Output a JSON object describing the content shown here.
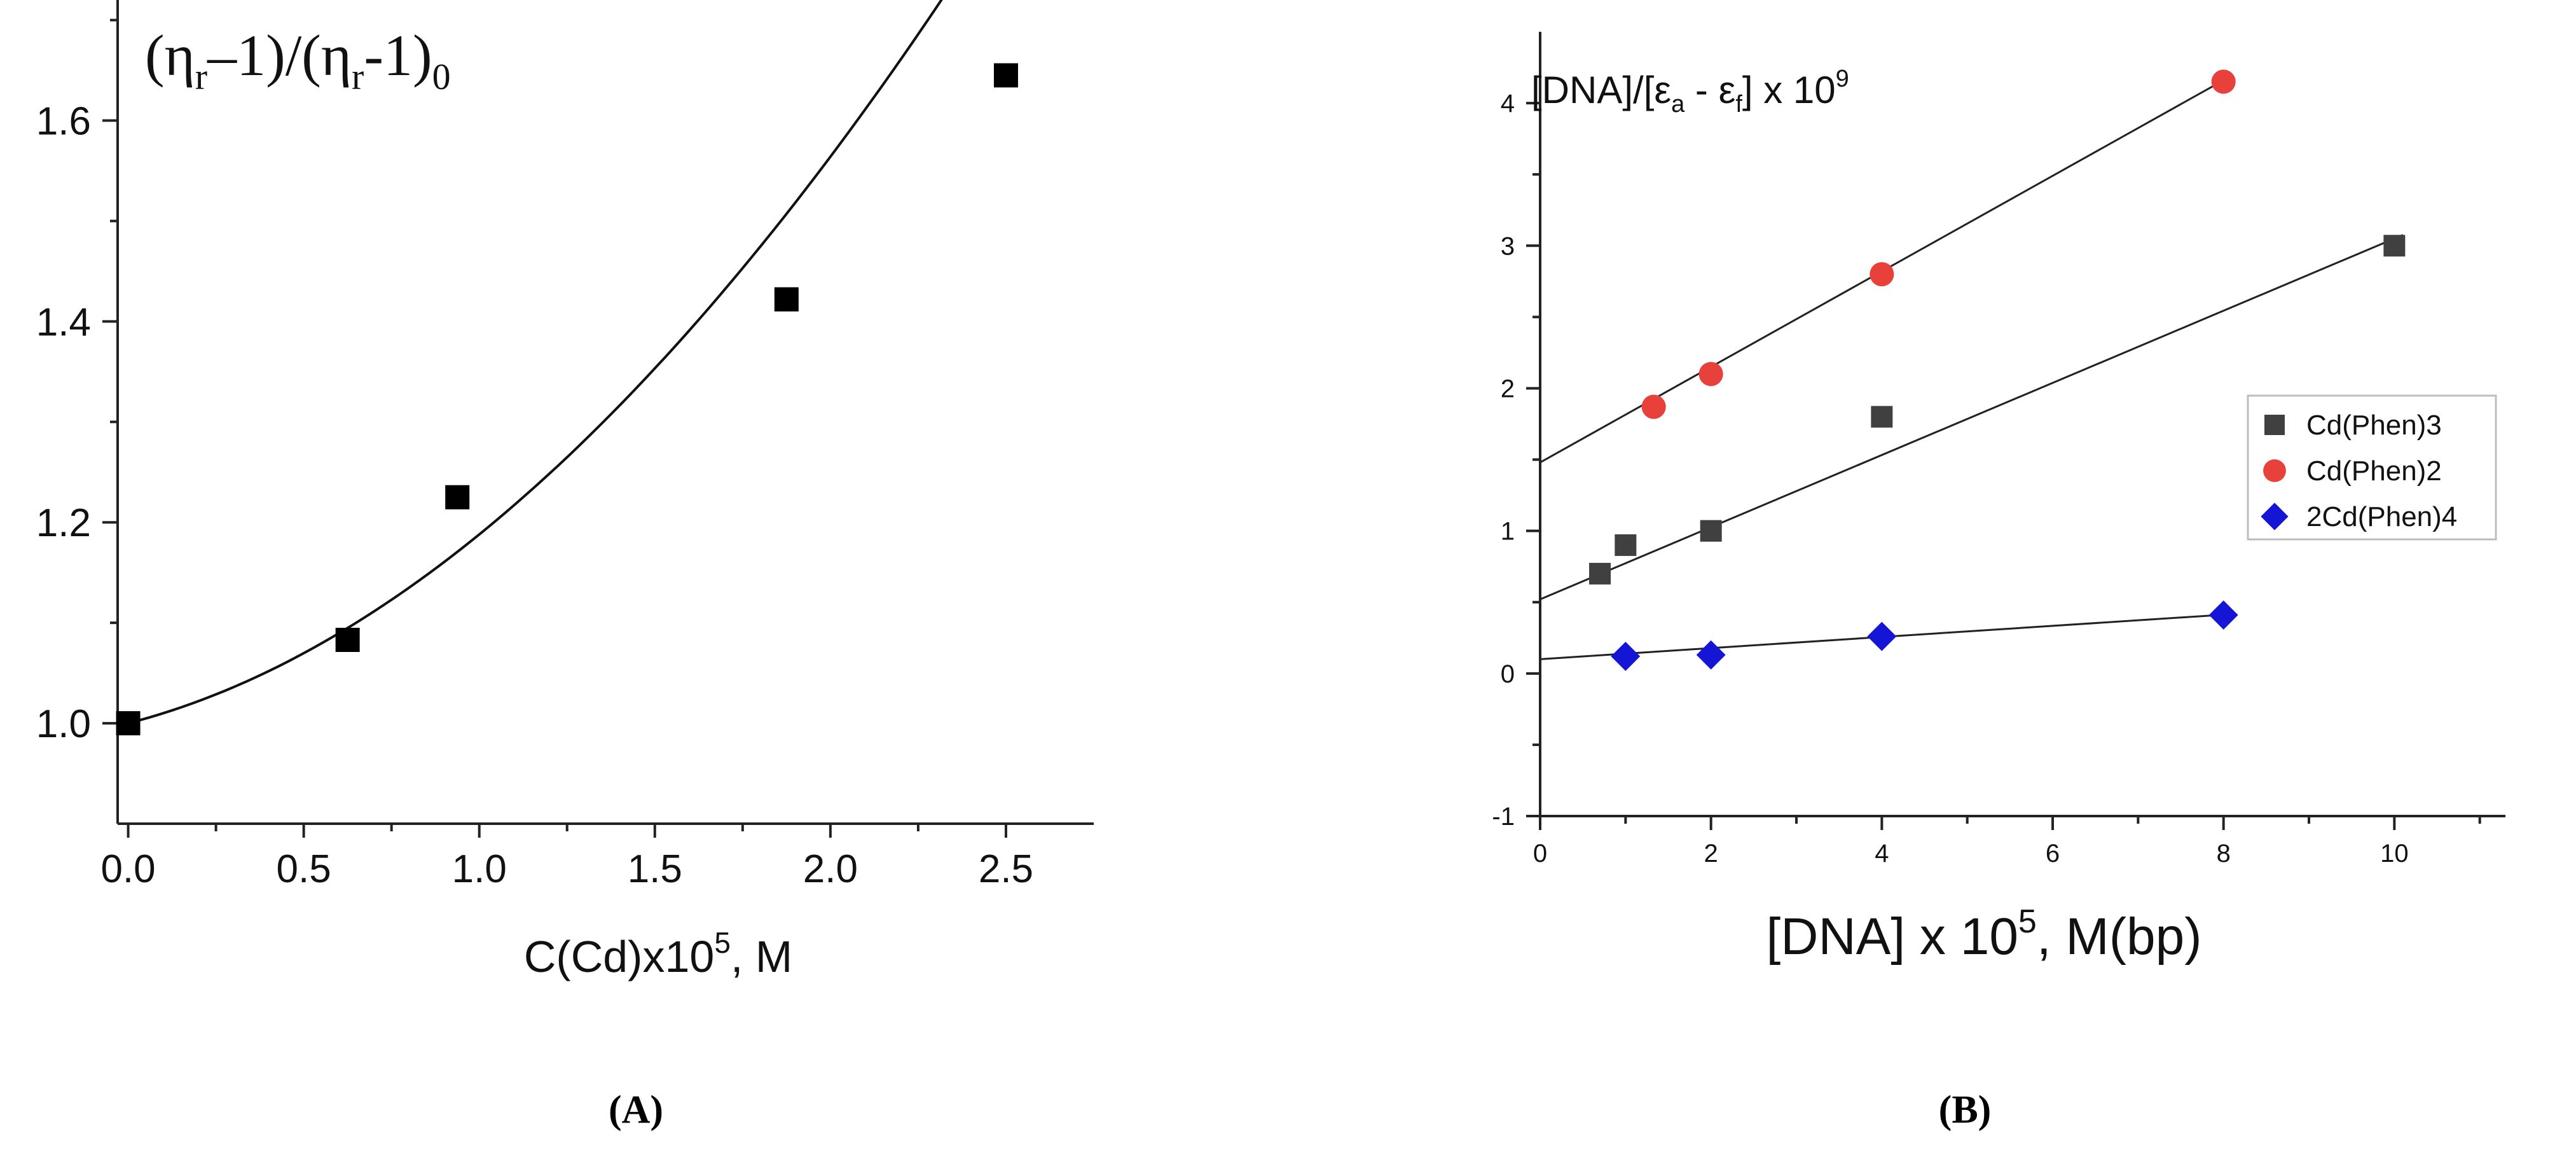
{
  "chart_data": [
    {
      "panel": "A",
      "type": "scatter",
      "title": "",
      "caption": "(A)",
      "ylabel": {
        "prefix": "(η",
        "sub1": "r",
        "middle": "–1)/(η",
        "sub2": "r",
        "suffix": "-1)",
        "sub3": "0"
      },
      "xlabel": {
        "prefix": "C(Cd)x10",
        "sup": "5",
        "suffix": ", M"
      },
      "xlim": [
        -0.03,
        2.75
      ],
      "ylim": [
        0.9,
        1.72
      ],
      "xticks": [
        0.0,
        0.5,
        1.0,
        1.5,
        2.0,
        2.5
      ],
      "xtick_labels": [
        "0.0",
        "0.5",
        "1.0",
        "1.5",
        "2.0",
        "2.5"
      ],
      "yticks": [
        1.0,
        1.2,
        1.4,
        1.6
      ],
      "ytick_labels": [
        "1.0",
        "1.2",
        "1.4",
        "1.6"
      ],
      "series": [
        {
          "name": "data",
          "marker": "square",
          "color": "#000000",
          "x": [
            0.0,
            0.625,
            0.9375,
            1.875,
            2.5
          ],
          "y": [
            1.0,
            1.083,
            1.225,
            1.422,
            1.645
          ]
        }
      ],
      "fit": {
        "type": "cubic",
        "coeffs": [
          1.0,
          0.09,
          0.1,
          -0.002
        ],
        "x_range": [
          0.0,
          2.45
        ]
      }
    },
    {
      "panel": "B",
      "type": "scatter",
      "title": "",
      "caption": "(B)",
      "ylabel": {
        "prefix": "[DNA]/[ε",
        "sub1": "a",
        "middle": " - ε",
        "sub2": "f",
        "suffix": "] x 10",
        "sup": "9"
      },
      "xlabel": {
        "prefix": "[DNA] x 10",
        "sup": "5",
        "suffix": ", M(bp)"
      },
      "xlim": [
        0,
        11.3
      ],
      "ylim": [
        -1,
        4.5
      ],
      "xticks": [
        0,
        2,
        4,
        6,
        8,
        10
      ],
      "xtick_labels": [
        "0",
        "2",
        "4",
        "6",
        "8",
        "10"
      ],
      "yticks": [
        -1,
        0,
        1,
        2,
        3,
        4
      ],
      "ytick_labels": [
        "-1",
        "0",
        "1",
        "2",
        "3",
        "4"
      ],
      "legend_position": "right",
      "series": [
        {
          "name": "Cd(Phen)3",
          "marker": "square",
          "color": "#404040",
          "x": [
            0.7,
            1.0,
            2.0,
            4.0,
            10.0
          ],
          "y": [
            0.7,
            0.9,
            1.0,
            1.8,
            3.0
          ],
          "fit": {
            "slope": 0.253,
            "intercept": 0.52,
            "x_range": [
              0,
              10.1
            ]
          }
        },
        {
          "name": "Cd(Phen)2",
          "marker": "circle",
          "color": "#e8413b",
          "x": [
            1.33,
            2.0,
            4.0,
            8.0
          ],
          "y": [
            1.87,
            2.1,
            2.8,
            4.15
          ],
          "fit": {
            "slope": 0.335,
            "intercept": 1.48,
            "x_range": [
              0,
              8.1
            ]
          }
        },
        {
          "name": "2Cd(Phen)4",
          "marker": "diamond",
          "color": "#1515d6",
          "x": [
            1.0,
            2.0,
            4.0,
            8.0
          ],
          "y": [
            0.12,
            0.13,
            0.26,
            0.41
          ],
          "fit": {
            "slope": 0.039,
            "intercept": 0.1,
            "x_range": [
              0,
              8.1
            ]
          }
        }
      ]
    }
  ]
}
